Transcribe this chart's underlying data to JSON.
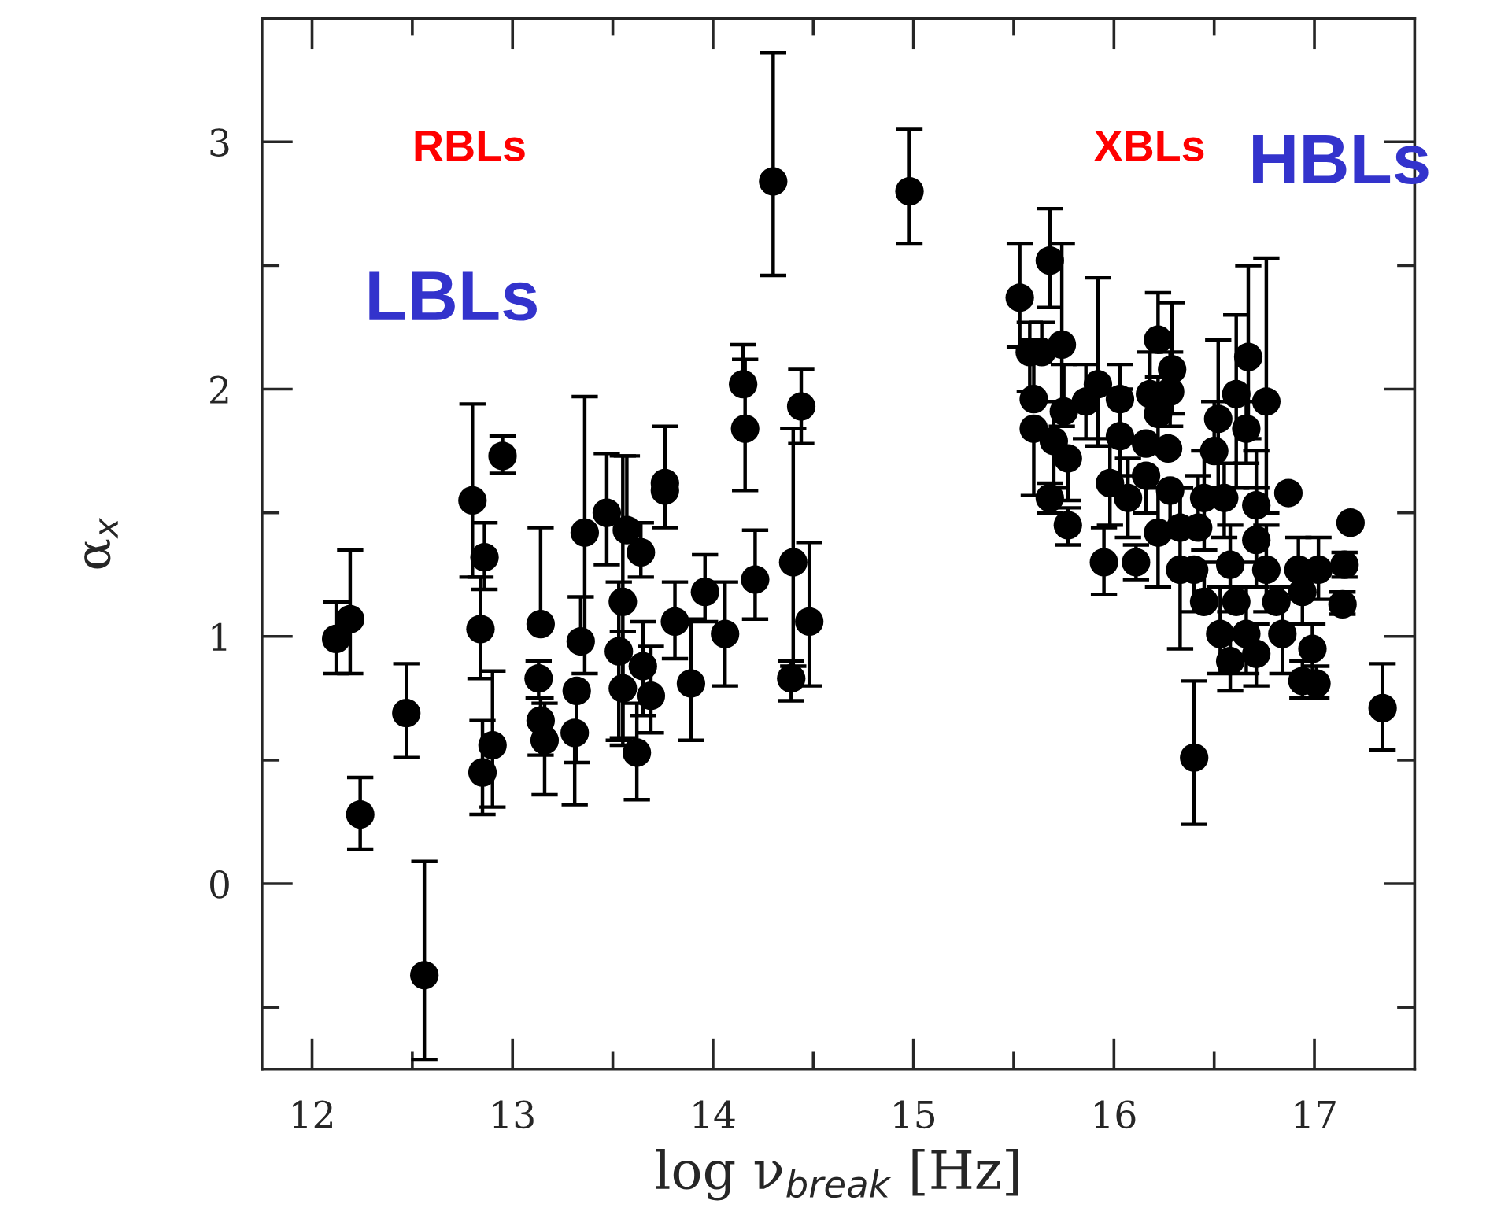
{
  "chart_data": {
    "type": "scatter",
    "xlabel": "log ν$_{break}$ [Hz]",
    "ylabel": "α$_{x}$",
    "xlim": [
      11.75,
      17.5
    ],
    "ylim": [
      -0.75,
      3.5
    ],
    "xticks": [
      12,
      {
        "value": 12.5,
        "label": null
      },
      13,
      {
        "value": 13.5,
        "label": null
      },
      14,
      {
        "value": 14.5,
        "label": null
      },
      15,
      {
        "value": 15.5,
        "label": null
      },
      16,
      {
        "value": 16.5,
        "label": null
      },
      17
    ],
    "yticks": [
      {
        "value": -0.5,
        "label": null
      },
      0,
      {
        "value": 0.5,
        "label": null
      },
      1,
      {
        "value": 1.5,
        "label": null
      },
      2,
      {
        "value": 2.5,
        "label": null
      },
      3
    ],
    "marker": "circle",
    "grid": false,
    "legend": false,
    "annotations": [
      "RBLs",
      "LBLs",
      "XBLs",
      "HBLs"
    ],
    "series": [
      {
        "color": "#000000",
        "x": [
          12.12,
          12.19,
          12.24,
          12.47,
          12.56,
          12.8,
          12.84,
          12.86,
          12.85,
          12.9,
          12.95,
          13.14,
          13.13,
          13.14,
          13.16,
          13.31,
          13.32,
          13.34,
          13.36,
          13.47,
          13.53,
          13.55,
          13.57,
          13.55,
          13.62,
          13.64,
          13.65,
          13.69,
          13.76,
          13.76,
          13.81,
          13.89,
          13.96,
          14.06,
          14.15,
          14.16,
          14.21,
          14.3,
          14.4,
          14.39,
          14.44,
          14.48,
          14.98,
          15.53,
          15.68,
          15.58,
          15.64,
          15.74,
          15.6,
          15.6,
          15.75,
          15.7,
          15.77,
          15.68,
          15.77,
          15.86,
          15.92,
          16.03,
          16.03,
          15.98,
          16.07,
          15.95,
          16.11,
          16.22,
          16.29,
          16.18,
          16.28,
          16.22,
          16.16,
          16.27,
          16.16,
          16.28,
          16.22,
          16.33,
          16.4,
          16.52,
          16.61,
          16.67,
          16.76,
          16.66,
          16.45,
          16.55,
          16.71,
          16.42,
          16.71,
          16.4,
          16.58,
          16.76,
          16.92,
          17.02,
          16.45,
          16.61,
          16.81,
          16.94,
          16.53,
          16.66,
          16.84,
          16.58,
          16.71,
          16.99,
          16.94,
          17.01,
          16.87,
          17.18,
          17.15,
          17.14,
          17.34,
          16.5,
          16.33
        ],
        "values": [
          0.99,
          1.07,
          0.28,
          0.69,
          -0.37,
          1.55,
          1.03,
          1.32,
          0.45,
          0.56,
          1.73,
          1.05,
          0.83,
          0.66,
          0.58,
          0.61,
          0.78,
          0.98,
          1.42,
          1.5,
          0.94,
          1.14,
          1.43,
          0.79,
          0.53,
          1.34,
          0.88,
          0.76,
          1.62,
          1.59,
          1.06,
          0.81,
          1.18,
          1.01,
          2.02,
          1.84,
          1.23,
          2.84,
          1.3,
          0.83,
          1.93,
          1.06,
          2.8,
          2.37,
          2.52,
          2.15,
          2.15,
          2.18,
          1.96,
          1.84,
          1.91,
          1.79,
          1.72,
          1.56,
          1.45,
          1.95,
          2.02,
          1.96,
          1.81,
          1.62,
          1.56,
          1.3,
          1.3,
          2.2,
          2.08,
          1.98,
          1.99,
          1.9,
          1.78,
          1.76,
          1.65,
          1.59,
          1.42,
          1.27,
          0.51,
          1.88,
          1.98,
          2.13,
          1.95,
          1.84,
          1.56,
          1.56,
          1.53,
          1.44,
          1.39,
          1.27,
          1.29,
          1.27,
          1.27,
          1.27,
          1.14,
          1.14,
          1.14,
          1.18,
          1.01,
          1.01,
          1.01,
          0.9,
          0.93,
          0.95,
          0.82,
          0.81,
          1.58,
          1.46,
          1.29,
          1.13,
          0.71,
          1.75,
          1.44
        ],
        "errors": [
          [
            0.85,
            1.14
          ],
          [
            0.85,
            1.35
          ],
          [
            0.14,
            0.43
          ],
          [
            0.51,
            0.89
          ],
          [
            -0.71,
            0.09
          ],
          [
            1.24,
            1.94
          ],
          [
            0.83,
            1.24
          ],
          [
            1.19,
            1.46
          ],
          [
            0.28,
            0.66
          ],
          [
            0.31,
            0.86
          ],
          [
            1.66,
            1.81
          ],
          [
            1.05,
            1.44
          ],
          [
            0.75,
            0.9
          ],
          [
            0.52,
            0.75
          ],
          [
            0.36,
            0.73
          ],
          [
            0.32,
            0.61
          ],
          [
            0.49,
            0.78
          ],
          [
            0.98,
            1.16
          ],
          [
            0.85,
            1.97
          ],
          [
            1.29,
            1.74
          ],
          [
            0.58,
            1.22
          ],
          [
            0.59,
            1.73
          ],
          [
            1.43,
            1.73
          ],
          [
            0.56,
            1.02
          ],
          [
            0.34,
            0.73
          ],
          [
            1.24,
            1.46
          ],
          [
            0.68,
            1.06
          ],
          [
            0.61,
            0.96
          ],
          [
            1.44,
            1.85
          ],
          null,
          [
            0.91,
            1.22
          ],
          [
            0.58,
            1.07
          ],
          [
            1.06,
            1.33
          ],
          [
            0.8,
            1.22
          ],
          [
            2.02,
            2.18
          ],
          [
            1.59,
            2.12
          ],
          [
            1.07,
            1.43
          ],
          [
            2.46,
            3.36
          ],
          [
            0.88,
            1.84
          ],
          [
            0.74,
            0.9
          ],
          [
            1.78,
            2.08
          ],
          [
            0.8,
            1.38
          ],
          [
            2.59,
            3.05
          ],
          [
            2.17,
            2.59
          ],
          [
            2.33,
            2.73
          ],
          [
            1.99,
            2.27
          ],
          [
            2.15,
            2.27
          ],
          [
            1.85,
            2.59
          ],
          [
            1.96,
            2.2
          ],
          [
            1.57,
            1.84
          ],
          [
            1.91,
            2.1
          ],
          [
            1.6,
            1.95
          ],
          [
            1.55,
            1.72
          ],
          [
            1.5,
            1.62
          ],
          [
            1.37,
            1.52
          ],
          [
            1.8,
            2.1
          ],
          [
            1.77,
            2.45
          ],
          [
            1.96,
            2.1
          ],
          [
            1.65,
            2.0
          ],
          [
            1.45,
            1.8
          ],
          [
            1.4,
            1.72
          ],
          [
            1.17,
            1.44
          ],
          [
            1.23,
            1.37
          ],
          [
            2.2,
            2.39
          ],
          [
            1.9,
            2.35
          ],
          [
            1.98,
            2.15
          ],
          [
            1.85,
            2.15
          ],
          [
            1.75,
            2.05
          ],
          null,
          null,
          [
            1.5,
            1.65
          ],
          [
            1.4,
            1.59
          ],
          [
            1.2,
            1.6
          ],
          [
            0.95,
            1.6
          ],
          [
            0.24,
            0.82
          ],
          [
            1.6,
            2.2
          ],
          [
            1.6,
            2.3
          ],
          [
            1.8,
            2.5
          ],
          [
            1.5,
            2.53
          ],
          [
            1.7,
            1.95
          ],
          [
            1.35,
            1.75
          ],
          [
            1.4,
            1.7
          ],
          [
            1.3,
            1.75
          ],
          [
            1.44,
            1.65
          ],
          [
            1.2,
            1.6
          ],
          [
            1.1,
            1.27
          ],
          [
            1.1,
            1.45
          ],
          [
            1.1,
            1.45
          ],
          [
            1.15,
            1.4
          ],
          [
            1.15,
            1.4
          ],
          [
            1.14,
            1.3
          ],
          null,
          null,
          [
            1.05,
            1.3
          ],
          [
            0.85,
            1.2
          ],
          [
            0.85,
            1.2
          ],
          [
            0.85,
            1.2
          ],
          [
            0.78,
            1.0
          ],
          [
            0.8,
            1.05
          ],
          [
            0.85,
            1.05
          ],
          [
            0.75,
            0.9
          ],
          [
            0.75,
            0.88
          ],
          null,
          null,
          [
            1.24,
            1.34
          ],
          [
            1.09,
            1.18
          ],
          [
            0.54,
            0.89
          ],
          [
            1.75,
            1.95
          ],
          [
            1.44,
            1.6
          ]
        ]
      }
    ]
  }
}
